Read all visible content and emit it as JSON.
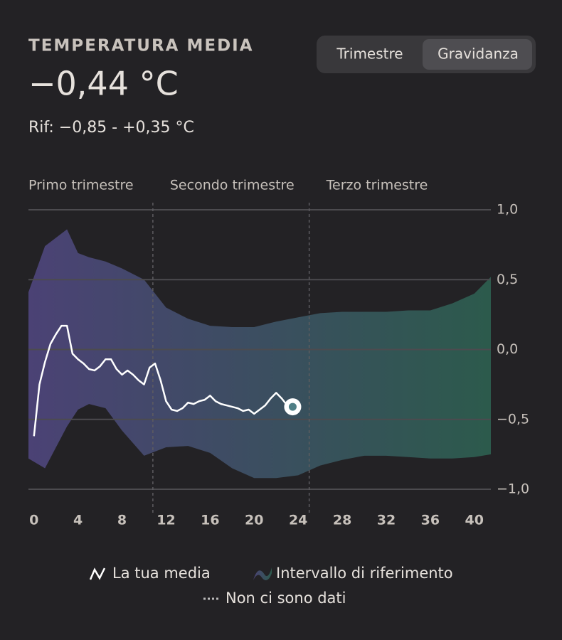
{
  "header": {
    "title": "TEMPERATURA MEDIA",
    "value": "−0,44 °C",
    "reference": "Rif: −0,85 - +0,35 °C"
  },
  "toggle": {
    "options": [
      "Trimestre",
      "Gravidanza"
    ],
    "selected": 1
  },
  "chart_data": {
    "type": "line",
    "trimesters": [
      "Primo trimestre",
      "Secondo trimestre",
      "Terzo trimestre"
    ],
    "no_data": {
      "name": "Non ci sono dati",
      "x": [
        10.8,
        25
      ]
    },
    "xlim": [
      -0.5,
      41.5
    ],
    "xticks": [
      0,
      4,
      8,
      12,
      16,
      20,
      24,
      28,
      32,
      36,
      40
    ],
    "ylim": [
      -1,
      1
    ],
    "yticks": [
      {
        "value": 1,
        "label": "1,0"
      },
      {
        "value": 0.5,
        "label": "0,5"
      },
      {
        "value": 0,
        "label": "0,0"
      },
      {
        "value": -0.5,
        "label": "−0,5"
      },
      {
        "value": -1,
        "label": "−1,0"
      }
    ],
    "grid": true,
    "band": {
      "name": "Intervallo di riferimento",
      "colors": [
        "#4b4275",
        "#2c5a4c"
      ],
      "x": [
        -0.5,
        1,
        3,
        4,
        5,
        6.5,
        8,
        10,
        12,
        14,
        16,
        18,
        20,
        22,
        24,
        26,
        28,
        30,
        32,
        34,
        36,
        38,
        40,
        41.5
      ],
      "upper": [
        0.41,
        0.74,
        0.86,
        0.69,
        0.66,
        0.63,
        0.58,
        0.5,
        0.3,
        0.22,
        0.17,
        0.16,
        0.16,
        0.2,
        0.23,
        0.26,
        0.27,
        0.27,
        0.27,
        0.28,
        0.28,
        0.33,
        0.4,
        0.52
      ],
      "lower": [
        -0.78,
        -0.85,
        -0.55,
        -0.43,
        -0.39,
        -0.42,
        -0.58,
        -0.76,
        -0.7,
        -0.69,
        -0.74,
        -0.85,
        -0.92,
        -0.92,
        -0.9,
        -0.83,
        -0.79,
        -0.76,
        -0.76,
        -0.77,
        -0.78,
        -0.78,
        -0.77,
        -0.75
      ]
    },
    "series": [
      {
        "name": "La tua media",
        "color": "#ffffff",
        "x": [
          0,
          0.5,
          1,
          1.5,
          2,
          2.5,
          3,
          3.5,
          4,
          4.5,
          5,
          5.5,
          6,
          6.5,
          7,
          7.5,
          8,
          8.5,
          9,
          9.5,
          10,
          10.5,
          11,
          11.5,
          12,
          12.5,
          13,
          13.5,
          14,
          14.5,
          15,
          15.5,
          16,
          16.5,
          17,
          17.5,
          18,
          18.5,
          19,
          19.5,
          20,
          20.5,
          21,
          21.5,
          22,
          22.5,
          23,
          23.5
        ],
        "values": [
          -0.62,
          -0.25,
          -0.09,
          0.04,
          0.11,
          0.17,
          0.17,
          -0.03,
          -0.07,
          -0.1,
          -0.14,
          -0.15,
          -0.12,
          -0.07,
          -0.07,
          -0.14,
          -0.18,
          -0.15,
          -0.18,
          -0.22,
          -0.25,
          -0.13,
          -0.1,
          -0.22,
          -0.37,
          -0.43,
          -0.44,
          -0.42,
          -0.38,
          -0.39,
          -0.37,
          -0.36,
          -0.33,
          -0.37,
          -0.39,
          -0.4,
          -0.41,
          -0.42,
          -0.44,
          -0.43,
          -0.46,
          -0.43,
          -0.4,
          -0.35,
          -0.31,
          -0.35,
          -0.4,
          -0.41
        ]
      }
    ]
  }
}
